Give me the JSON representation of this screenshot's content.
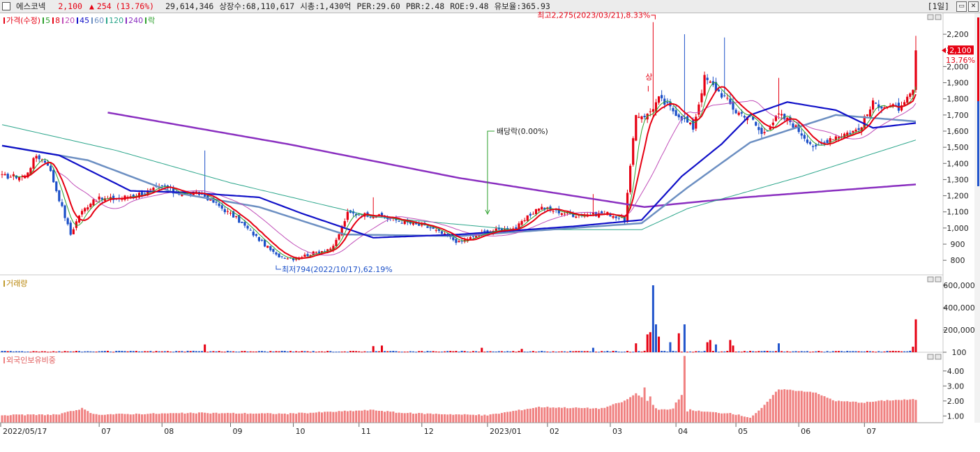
{
  "header": {
    "stock_name": "에스코넥",
    "price": "2,100",
    "change_arrow": "▲",
    "change": "254",
    "change_pct": "(13.76%)",
    "volume": "29,614,346",
    "listed_shares": "상장수:68,110,617",
    "market_cap": "시총:1,430억",
    "per": "PER:29.60",
    "pbr": "PBR:2.48",
    "roe": "ROE:9.48",
    "reserve_ratio": "유보율:365.93",
    "period": "[1일]"
  },
  "colors": {
    "up": "#e60012",
    "down": "#1a4fc8",
    "ma5": "#2ca02c",
    "ma8": "#e60012",
    "ma20": "#c04db8",
    "ma45": "#1010c8",
    "ma60": "#6c8fc2",
    "ma120": "#2aa58a",
    "ma240": "#8a2fc0",
    "foreign": "#f08080",
    "volume_up": "#e60012",
    "volume_down": "#2255cc"
  },
  "legends": {
    "price": {
      "title": "가격(수정)",
      "items": [
        {
          "label": "5",
          "color": "#2ca02c"
        },
        {
          "label": "8",
          "color": "#e60012"
        },
        {
          "label": "20",
          "color": "#c04db8"
        },
        {
          "label": "45",
          "color": "#1010c8"
        },
        {
          "label": "60",
          "color": "#6c8fc2"
        },
        {
          "label": "120",
          "color": "#2aa58a"
        },
        {
          "label": "240",
          "color": "#8a2fc0"
        },
        {
          "label": "락",
          "color": "#2ca02c"
        }
      ]
    },
    "volume": "거래량",
    "foreign": "외국인보유비중"
  },
  "annotations": {
    "high": "최고2,275(2023/03/21),8.33%",
    "low": "최저794(2022/10/17),62.19%",
    "dividend": "배당락(0.00%)",
    "upper_limit": "상"
  },
  "chart_data": [
    {
      "type": "candlestick",
      "name": "가격(수정)",
      "yaxis_ticks": [
        800,
        900,
        1000,
        1100,
        1200,
        1300,
        1400,
        1500,
        1600,
        1700,
        1800,
        1900,
        2000,
        2100,
        2200
      ],
      "yaxis_labels": [
        "800",
        "900",
        "1,000",
        "1,100",
        "1,200",
        "1,300",
        "1,400",
        "1,500",
        "1,600",
        "1,700",
        "1,800",
        "1,900",
        "2,000",
        "2,100",
        "2,200"
      ],
      "ylim": [
        710,
        2330
      ],
      "current_price": 2100,
      "current_price_label": "2,100",
      "current_change_label": "13.76%",
      "high": {
        "value": 2275,
        "date": "2023/03/21"
      },
      "low": {
        "value": 794,
        "date": "2022/10/17"
      },
      "x_labels": [
        "2022/05/17",
        "07",
        "08",
        "09",
        "10",
        "11",
        "12",
        "2023/01",
        "02",
        "03",
        "04",
        "05",
        "06",
        "07"
      ],
      "close_keyframes": [
        {
          "d": 0,
          "v": 1320
        },
        {
          "d": 8,
          "v": 1320
        },
        {
          "d": 12,
          "v": 1450
        },
        {
          "d": 16,
          "v": 1400
        },
        {
          "d": 24,
          "v": 960
        },
        {
          "d": 27,
          "v": 1080
        },
        {
          "d": 32,
          "v": 1180
        },
        {
          "d": 40,
          "v": 1180
        },
        {
          "d": 50,
          "v": 1220
        },
        {
          "d": 57,
          "v": 1260
        },
        {
          "d": 60,
          "v": 1220
        },
        {
          "d": 70,
          "v": 1210
        },
        {
          "d": 82,
          "v": 1060
        },
        {
          "d": 96,
          "v": 830
        },
        {
          "d": 102,
          "v": 810
        },
        {
          "d": 116,
          "v": 880
        },
        {
          "d": 121,
          "v": 1090
        },
        {
          "d": 130,
          "v": 1080
        },
        {
          "d": 150,
          "v": 1000
        },
        {
          "d": 160,
          "v": 910
        },
        {
          "d": 170,
          "v": 980
        },
        {
          "d": 180,
          "v": 1000
        },
        {
          "d": 188,
          "v": 1130
        },
        {
          "d": 200,
          "v": 1080
        },
        {
          "d": 212,
          "v": 1090
        },
        {
          "d": 218,
          "v": 1050
        },
        {
          "d": 222,
          "v": 1700
        },
        {
          "d": 226,
          "v": 1700
        },
        {
          "d": 230,
          "v": 1800
        },
        {
          "d": 237,
          "v": 1700
        },
        {
          "d": 242,
          "v": 1620
        },
        {
          "d": 246,
          "v": 1930
        },
        {
          "d": 253,
          "v": 1810
        },
        {
          "d": 257,
          "v": 1720
        },
        {
          "d": 262,
          "v": 1690
        },
        {
          "d": 266,
          "v": 1580
        },
        {
          "d": 272,
          "v": 1700
        },
        {
          "d": 276,
          "v": 1660
        },
        {
          "d": 285,
          "v": 1490
        },
        {
          "d": 290,
          "v": 1560
        },
        {
          "d": 300,
          "v": 1610
        },
        {
          "d": 305,
          "v": 1770
        },
        {
          "d": 315,
          "v": 1740
        },
        {
          "d": 319,
          "v": 1846
        },
        {
          "d": 320,
          "v": 2100
        }
      ],
      "spikes": [
        {
          "d": 71,
          "high": 1480
        },
        {
          "d": 130,
          "high": 1190
        },
        {
          "d": 207,
          "high": 1210
        },
        {
          "d": 228,
          "high": 2275
        },
        {
          "d": 239,
          "high": 2200
        },
        {
          "d": 253,
          "high": 2180
        },
        {
          "d": 272,
          "high": 1930
        },
        {
          "d": 320,
          "high": 2190
        }
      ],
      "moving_average_keyframes": {
        "ma240": [
          {
            "d": 37,
            "v": 1715
          },
          {
            "d": 100,
            "v": 1520
          },
          {
            "d": 160,
            "v": 1310
          },
          {
            "d": 225,
            "v": 1130
          },
          {
            "d": 260,
            "v": 1190
          },
          {
            "d": 320,
            "v": 1270
          }
        ],
        "ma120": [
          {
            "d": 0,
            "v": 1640
          },
          {
            "d": 40,
            "v": 1480
          },
          {
            "d": 80,
            "v": 1280
          },
          {
            "d": 130,
            "v": 1070
          },
          {
            "d": 180,
            "v": 990
          },
          {
            "d": 224,
            "v": 990
          },
          {
            "d": 240,
            "v": 1120
          },
          {
            "d": 280,
            "v": 1320
          },
          {
            "d": 320,
            "v": 1545
          }
        ],
        "ma60": [
          {
            "d": 0,
            "v": 1510
          },
          {
            "d": 30,
            "v": 1420
          },
          {
            "d": 60,
            "v": 1220
          },
          {
            "d": 90,
            "v": 1130
          },
          {
            "d": 120,
            "v": 960
          },
          {
            "d": 160,
            "v": 950
          },
          {
            "d": 200,
            "v": 1000
          },
          {
            "d": 224,
            "v": 1030
          },
          {
            "d": 240,
            "v": 1250
          },
          {
            "d": 262,
            "v": 1530
          },
          {
            "d": 292,
            "v": 1700
          },
          {
            "d": 320,
            "v": 1660
          }
        ],
        "ma45": [
          {
            "d": 0,
            "v": 1510
          },
          {
            "d": 20,
            "v": 1450
          },
          {
            "d": 45,
            "v": 1230
          },
          {
            "d": 65,
            "v": 1220
          },
          {
            "d": 90,
            "v": 1190
          },
          {
            "d": 105,
            "v": 1090
          },
          {
            "d": 130,
            "v": 940
          },
          {
            "d": 160,
            "v": 960
          },
          {
            "d": 200,
            "v": 1010
          },
          {
            "d": 224,
            "v": 1050
          },
          {
            "d": 238,
            "v": 1320
          },
          {
            "d": 252,
            "v": 1520
          },
          {
            "d": 262,
            "v": 1700
          },
          {
            "d": 275,
            "v": 1780
          },
          {
            "d": 292,
            "v": 1730
          },
          {
            "d": 305,
            "v": 1620
          },
          {
            "d": 320,
            "v": 1650
          }
        ]
      }
    },
    {
      "type": "bar",
      "name": "거래량",
      "yaxis_labels": [
        "600,000",
        "400,000",
        "200,000",
        "100"
      ],
      "yaxis_values": [
        600000,
        400000,
        200000,
        100
      ],
      "ylim": [
        0,
        650000
      ],
      "bars": [
        {
          "d": 71,
          "v": 70000,
          "up": true
        },
        {
          "d": 130,
          "v": 55000,
          "up": true
        },
        {
          "d": 133,
          "v": 60000,
          "up": true
        },
        {
          "d": 168,
          "v": 40000,
          "up": true
        },
        {
          "d": 182,
          "v": 30000,
          "up": true
        },
        {
          "d": 207,
          "v": 40000,
          "up": false
        },
        {
          "d": 222,
          "v": 80000,
          "up": true
        },
        {
          "d": 226,
          "v": 160000,
          "up": true
        },
        {
          "d": 227,
          "v": 180000,
          "up": true
        },
        {
          "d": 228,
          "v": 600000,
          "up": false
        },
        {
          "d": 229,
          "v": 250000,
          "up": false
        },
        {
          "d": 230,
          "v": 140000,
          "up": true
        },
        {
          "d": 234,
          "v": 90000,
          "up": false
        },
        {
          "d": 237,
          "v": 170000,
          "up": true
        },
        {
          "d": 239,
          "v": 250000,
          "up": false
        },
        {
          "d": 247,
          "v": 90000,
          "up": true
        },
        {
          "d": 248,
          "v": 110000,
          "up": true
        },
        {
          "d": 250,
          "v": 70000,
          "up": false
        },
        {
          "d": 255,
          "v": 110000,
          "up": true
        },
        {
          "d": 256,
          "v": 60000,
          "up": true
        },
        {
          "d": 272,
          "v": 80000,
          "up": false
        },
        {
          "d": 320,
          "v": 295000,
          "up": true
        },
        {
          "d": 319,
          "v": 50000,
          "up": true
        }
      ]
    },
    {
      "type": "bar",
      "name": "외국인보유비중",
      "yaxis_labels": [
        "4.00",
        "3.00",
        "2.00",
        "1.00"
      ],
      "yaxis_values": [
        4,
        3,
        2,
        1
      ],
      "ylim": [
        0.55,
        5.2
      ],
      "unit": "%",
      "keyframes": [
        {
          "d": 0,
          "v": 1.05
        },
        {
          "d": 20,
          "v": 1.1
        },
        {
          "d": 28,
          "v": 1.5
        },
        {
          "d": 32,
          "v": 1.1
        },
        {
          "d": 70,
          "v": 1.2
        },
        {
          "d": 100,
          "v": 1.15
        },
        {
          "d": 130,
          "v": 1.4
        },
        {
          "d": 140,
          "v": 1.2
        },
        {
          "d": 170,
          "v": 1.05
        },
        {
          "d": 188,
          "v": 1.6
        },
        {
          "d": 210,
          "v": 1.5
        },
        {
          "d": 218,
          "v": 2.0
        },
        {
          "d": 222,
          "v": 2.5
        },
        {
          "d": 226,
          "v": 2.0
        },
        {
          "d": 230,
          "v": 1.4
        },
        {
          "d": 238,
          "v": 1.5
        },
        {
          "d": 245,
          "v": 1.3
        },
        {
          "d": 256,
          "v": 1.15
        },
        {
          "d": 262,
          "v": 0.9
        },
        {
          "d": 266,
          "v": 1.5
        },
        {
          "d": 272,
          "v": 2.8
        },
        {
          "d": 284,
          "v": 2.6
        },
        {
          "d": 292,
          "v": 2.0
        },
        {
          "d": 302,
          "v": 1.9
        },
        {
          "d": 310,
          "v": 2.05
        },
        {
          "d": 320,
          "v": 2.1
        }
      ],
      "spikes": [
        {
          "d": 225,
          "v": 2.9
        },
        {
          "d": 227,
          "v": 2.3
        },
        {
          "d": 236,
          "v": 1.9
        },
        {
          "d": 237,
          "v": 2.1
        },
        {
          "d": 238,
          "v": 2.4
        },
        {
          "d": 239,
          "v": 5.0
        },
        {
          "d": 240,
          "v": 1.3
        }
      ]
    }
  ]
}
